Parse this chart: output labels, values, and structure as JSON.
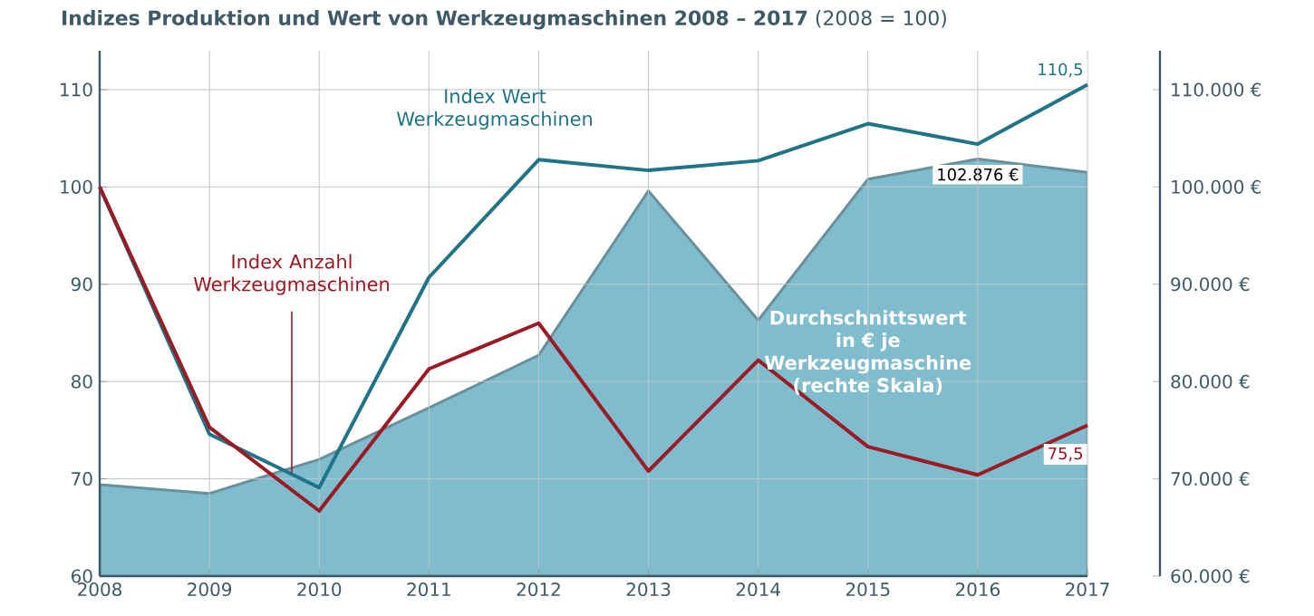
{
  "chart_data": {
    "type": "line",
    "title": "**Indizes Produktion und Wert von Werkzeugmaschinen 2008 – 2017** (2008 = 100)",
    "categories": [
      "2008",
      "2009",
      "2010",
      "2011",
      "2012",
      "2013",
      "2014",
      "2015",
      "2016",
      "2017"
    ],
    "series": [
      {
        "name": "Durchschnittswert in € je Werkzeugmaschine (rechte Skala)",
        "type": "area",
        "axis": "y2",
        "color": "#7fbccd",
        "values": [
          69400,
          68500,
          72000,
          77300,
          82700,
          99600,
          86300,
          100800,
          102876,
          101500
        ],
        "value_labels": [
          null,
          null,
          null,
          null,
          null,
          null,
          null,
          null,
          "102.876 €",
          null
        ]
      },
      {
        "name": "Index Wert Werkzeugmaschinen",
        "color": "#1f7488",
        "values": [
          100,
          74.6,
          69.1,
          90.7,
          102.8,
          101.7,
          102.7,
          106.5,
          104.4,
          110.5
        ],
        "value_labels": [
          null,
          null,
          null,
          null,
          null,
          null,
          null,
          null,
          null,
          "110,5"
        ]
      },
      {
        "name": "Index Anzahl Werkzeugmaschinen",
        "color": "#9b1b25",
        "values": [
          100,
          75.3,
          66.7,
          81.3,
          86.0,
          70.8,
          82.2,
          73.3,
          70.4,
          75.5
        ],
        "value_labels": [
          null,
          null,
          null,
          null,
          null,
          null,
          null,
          null,
          null,
          "75,5"
        ]
      }
    ],
    "ylim": [
      60,
      114
    ],
    "yticks": [
      60,
      70,
      80,
      90,
      100,
      110
    ],
    "y2lim": [
      60000,
      114000
    ],
    "y2ticks": [
      {
        "value": 60000,
        "label": "60.000 €"
      },
      {
        "value": 70000,
        "label": "70.000 €"
      },
      {
        "value": 80000,
        "label": "80.000 €"
      },
      {
        "value": 90000,
        "label": "90.000 €"
      },
      {
        "value": 100000,
        "label": "100.000 €"
      },
      {
        "value": 110000,
        "label": "110.000 €"
      }
    ],
    "grid": true
  }
}
